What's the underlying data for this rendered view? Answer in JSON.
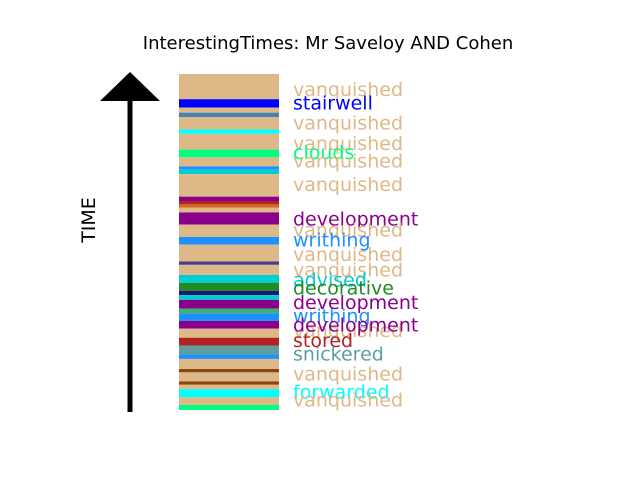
{
  "chart_data": {
    "type": "bar",
    "title": "InterestingTimes: Mr Saveloy AND Cohen",
    "ylabel": "TIME",
    "grid": false,
    "legend": "none",
    "bands": [
      {
        "start": 0.0,
        "end": 0.075,
        "color": "#deb887"
      },
      {
        "start": 0.075,
        "end": 0.1,
        "color": "#0000ff"
      },
      {
        "start": 0.1,
        "end": 0.115,
        "color": "#deb887"
      },
      {
        "start": 0.115,
        "end": 0.128,
        "color": "#4682b4"
      },
      {
        "start": 0.128,
        "end": 0.165,
        "color": "#deb887"
      },
      {
        "start": 0.165,
        "end": 0.178,
        "color": "#00ffff"
      },
      {
        "start": 0.178,
        "end": 0.225,
        "color": "#deb887"
      },
      {
        "start": 0.225,
        "end": 0.248,
        "color": "#00ff7f"
      },
      {
        "start": 0.248,
        "end": 0.275,
        "color": "#deb887"
      },
      {
        "start": 0.275,
        "end": 0.285,
        "color": "#1e90ff"
      },
      {
        "start": 0.285,
        "end": 0.298,
        "color": "#00ced1"
      },
      {
        "start": 0.298,
        "end": 0.365,
        "color": "#deb887"
      },
      {
        "start": 0.365,
        "end": 0.378,
        "color": "#8b008b"
      },
      {
        "start": 0.378,
        "end": 0.388,
        "color": "#b22222"
      },
      {
        "start": 0.388,
        "end": 0.398,
        "color": "#d2691e"
      },
      {
        "start": 0.398,
        "end": 0.412,
        "color": "#deb887"
      },
      {
        "start": 0.412,
        "end": 0.448,
        "color": "#8b008b"
      },
      {
        "start": 0.448,
        "end": 0.485,
        "color": "#deb887"
      },
      {
        "start": 0.485,
        "end": 0.508,
        "color": "#1e90ff"
      },
      {
        "start": 0.508,
        "end": 0.558,
        "color": "#deb887"
      },
      {
        "start": 0.558,
        "end": 0.568,
        "color": "#483d8b"
      },
      {
        "start": 0.568,
        "end": 0.598,
        "color": "#deb887"
      },
      {
        "start": 0.598,
        "end": 0.622,
        "color": "#00ced1"
      },
      {
        "start": 0.622,
        "end": 0.645,
        "color": "#228b22"
      },
      {
        "start": 0.645,
        "end": 0.658,
        "color": "#191970"
      },
      {
        "start": 0.658,
        "end": 0.672,
        "color": "#00ced1"
      },
      {
        "start": 0.672,
        "end": 0.698,
        "color": "#8b008b"
      },
      {
        "start": 0.698,
        "end": 0.712,
        "color": "#3cb371"
      },
      {
        "start": 0.712,
        "end": 0.735,
        "color": "#1e90ff"
      },
      {
        "start": 0.735,
        "end": 0.758,
        "color": "#8b008b"
      },
      {
        "start": 0.758,
        "end": 0.785,
        "color": "#deb887"
      },
      {
        "start": 0.785,
        "end": 0.808,
        "color": "#b22222"
      },
      {
        "start": 0.808,
        "end": 0.835,
        "color": "#5f9ea0"
      },
      {
        "start": 0.835,
        "end": 0.848,
        "color": "#1e90ff"
      },
      {
        "start": 0.848,
        "end": 0.878,
        "color": "#deb887"
      },
      {
        "start": 0.878,
        "end": 0.888,
        "color": "#8b4513"
      },
      {
        "start": 0.888,
        "end": 0.915,
        "color": "#deb887"
      },
      {
        "start": 0.915,
        "end": 0.925,
        "color": "#8b4513"
      },
      {
        "start": 0.925,
        "end": 0.938,
        "color": "#deb887"
      },
      {
        "start": 0.938,
        "end": 0.962,
        "color": "#00ffff"
      },
      {
        "start": 0.962,
        "end": 0.985,
        "color": "#deb887"
      },
      {
        "start": 0.985,
        "end": 1.0,
        "color": "#00ff7f"
      }
    ],
    "labels": [
      {
        "text": "vanquished",
        "pos": 0.045,
        "color": "#deb887"
      },
      {
        "text": "stairwell",
        "pos": 0.085,
        "color": "#0000ff"
      },
      {
        "text": "vanquished",
        "pos": 0.145,
        "color": "#deb887"
      },
      {
        "text": "vanquished",
        "pos": 0.205,
        "color": "#deb887"
      },
      {
        "text": "clouds",
        "pos": 0.232,
        "color": "#00ff7f"
      },
      {
        "text": "vanquished",
        "pos": 0.257,
        "color": "#deb887"
      },
      {
        "text": "vanquished",
        "pos": 0.328,
        "color": "#deb887"
      },
      {
        "text": "development",
        "pos": 0.43,
        "color": "#8b008b"
      },
      {
        "text": "vanquished",
        "pos": 0.463,
        "color": "#deb887"
      },
      {
        "text": "writhing",
        "pos": 0.492,
        "color": "#1e90ff"
      },
      {
        "text": "vanquished",
        "pos": 0.535,
        "color": "#deb887"
      },
      {
        "text": "vanquished",
        "pos": 0.582,
        "color": "#deb887"
      },
      {
        "text": "advised",
        "pos": 0.611,
        "color": "#00ced1"
      },
      {
        "text": "decorative",
        "pos": 0.636,
        "color": "#228b22"
      },
      {
        "text": "development",
        "pos": 0.678,
        "color": "#8b008b"
      },
      {
        "text": "writhing",
        "pos": 0.718,
        "color": "#1e90ff"
      },
      {
        "text": "vanquished",
        "pos": 0.762,
        "color": "#deb887"
      },
      {
        "text": "development",
        "pos": 0.745,
        "color": "#8b008b"
      },
      {
        "text": "stored",
        "pos": 0.792,
        "color": "#b22222"
      },
      {
        "text": "snickered",
        "pos": 0.832,
        "color": "#5f9ea0"
      },
      {
        "text": "vanquished",
        "pos": 0.892,
        "color": "#deb887"
      },
      {
        "text": "forwarded",
        "pos": 0.945,
        "color": "#00ffff"
      },
      {
        "text": "vanquished",
        "pos": 0.968,
        "color": "#deb887"
      }
    ]
  }
}
